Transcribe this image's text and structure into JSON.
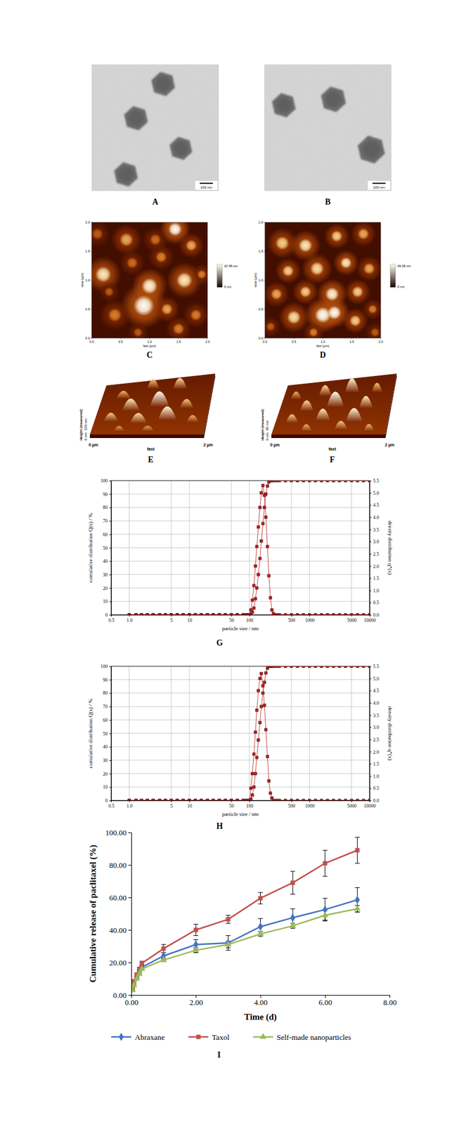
{
  "panels": [
    {
      "label": "A",
      "scale_bar": "100 nm"
    },
    {
      "label": "B",
      "scale_bar": "100 nm"
    },
    {
      "label": "C",
      "x_label": "fast (µm)",
      "y_label": "slow (µm)",
      "ticks": [
        "0.0",
        "0.5",
        "1.0",
        "1.5",
        "2.0"
      ],
      "color_max": "42.58 nm",
      "color_min": "0 nm"
    },
    {
      "label": "D",
      "x_label": "fast (µm)",
      "y_label": "slow (µm)",
      "ticks": [
        "0.0",
        "0.5",
        "1.0",
        "1.5",
        "2.0"
      ],
      "color_max": "49.08 nm",
      "color_min": "0 nm"
    },
    {
      "label": "E",
      "axis_start": "0 µm",
      "axis_label": "fast",
      "axis_end": "2 µm",
      "z_label": "Height (measured)",
      "z_max": "100 nm",
      "z_min": "0 nm"
    },
    {
      "label": "F",
      "axis_start": "0 µm",
      "axis_label": "fast",
      "axis_end": "2 µm",
      "z_label": "Height (measured)",
      "z_max": "80 nm",
      "z_min": "0 nm"
    }
  ],
  "chart_data": [
    {
      "type": "line",
      "title": "G",
      "x_label": "particle size / nm",
      "y_label": "cumulative distribution Q(x) / %",
      "y2_label": "density distribution q*(x)",
      "log": "x",
      "grid": true,
      "xlim": [
        0.5,
        10000
      ],
      "xticks": [
        0.5,
        {
          "value": 1,
          "label": "1.0"
        },
        5,
        10,
        50,
        100,
        500,
        1000,
        5000,
        10000
      ],
      "ylim": [
        0,
        100
      ],
      "yticks": [
        0,
        10,
        20,
        30,
        40,
        50,
        60,
        70,
        80,
        90,
        100
      ],
      "y2lim": [
        0,
        5.5
      ],
      "y2ticks": [
        {
          "value": 0,
          "label": "0.0"
        },
        0.5,
        {
          "value": 1,
          "label": "1.0"
        },
        1.5,
        {
          "value": 2,
          "label": "2.0"
        },
        2.5,
        {
          "value": 3,
          "label": "3.0"
        },
        3.5,
        {
          "value": 4,
          "label": "4.0"
        },
        4.5,
        {
          "value": 5,
          "label": "5.0"
        },
        5.5
      ],
      "x": [
        1,
        1.3,
        1.6,
        2,
        2.5,
        3.2,
        4,
        5,
        6.3,
        7.9,
        10,
        12.6,
        15.8,
        20,
        25,
        31.6,
        39.8,
        50,
        63,
        79,
        89,
        100,
        106,
        112,
        119,
        126,
        133,
        141,
        150,
        158,
        168,
        178,
        188,
        200,
        211,
        224,
        237,
        251,
        282,
        316,
        398,
        501,
        631,
        794,
        1000,
        1259,
        1585,
        1995,
        2512,
        3162,
        3981,
        5012,
        6310,
        7943,
        10000
      ],
      "series": [
        {
          "color": "#b22222",
          "marker": "square",
          "values": [
            0,
            0,
            0,
            0,
            0,
            0,
            0,
            0,
            0,
            0,
            0,
            0,
            0,
            0,
            0,
            0,
            0,
            0,
            0,
            0,
            0,
            0,
            0.5,
            2,
            5,
            12,
            20,
            30,
            42,
            55,
            68,
            80,
            90,
            96,
            99,
            100,
            100,
            100,
            100,
            100,
            100,
            100,
            100,
            100,
            100,
            100,
            100,
            100,
            100,
            100,
            100,
            100,
            100,
            100,
            100
          ]
        },
        {
          "color": "#b22222",
          "marker": "square",
          "axis": "y2",
          "values": [
            0,
            0,
            0,
            0,
            0,
            0,
            0,
            0,
            0,
            0,
            0,
            0,
            0,
            0,
            0,
            0,
            0,
            0,
            0,
            0,
            0,
            0,
            0.2,
            0.6,
            1.2,
            2,
            2.8,
            3.6,
            4.4,
            5,
            5.3,
            4.9,
            4,
            2.8,
            1.6,
            0.7,
            0.2,
            0.05,
            0,
            0,
            0,
            0,
            0,
            0,
            0,
            0,
            0,
            0,
            0,
            0,
            0,
            0,
            0,
            0,
            0
          ]
        }
      ]
    },
    {
      "type": "line",
      "title": "H",
      "x_label": "particle size / nm",
      "y_label": "cumulative distribution Q(x) / %",
      "y2_label": "density distribution q*(x)",
      "log": "x",
      "grid": true,
      "xlim": [
        0.5,
        10000
      ],
      "xticks": [
        0.5,
        {
          "value": 1,
          "label": "1.0"
        },
        5,
        10,
        50,
        100,
        500,
        1000,
        5000,
        10000
      ],
      "ylim": [
        0,
        100
      ],
      "yticks": [
        0,
        10,
        20,
        30,
        40,
        50,
        60,
        70,
        80,
        90,
        100
      ],
      "y2lim": [
        0,
        5.5
      ],
      "y2ticks": [
        {
          "value": 0,
          "label": "0.0"
        },
        0.5,
        {
          "value": 1,
          "label": "1.0"
        },
        1.5,
        {
          "value": 2,
          "label": "2.0"
        },
        2.5,
        {
          "value": 3,
          "label": "3.0"
        },
        3.5,
        {
          "value": 4,
          "label": "4.0"
        },
        4.5,
        {
          "value": 5,
          "label": "5.0"
        },
        5.5
      ],
      "x": [
        1,
        1.3,
        1.6,
        2,
        2.5,
        3.2,
        4,
        5,
        6.3,
        7.9,
        10,
        12.6,
        15.8,
        20,
        25,
        31.6,
        39.8,
        50,
        63,
        79,
        89,
        100,
        106,
        112,
        119,
        126,
        133,
        141,
        150,
        158,
        168,
        178,
        188,
        200,
        211,
        224,
        237,
        251,
        282,
        316,
        398,
        501,
        631,
        794,
        1000,
        1259,
        1585,
        1995,
        2512,
        3162,
        3981,
        5012,
        6310,
        7943,
        10000
      ],
      "series": [
        {
          "color": "#b22222",
          "marker": "square",
          "values": [
            0,
            0,
            0,
            0,
            0,
            0,
            0,
            0,
            0,
            0,
            0,
            0,
            0,
            0,
            0,
            0,
            0,
            0,
            0,
            0,
            0,
            0,
            1,
            4,
            10,
            20,
            32,
            45,
            58,
            70,
            80,
            88,
            95,
            98.5,
            100,
            100,
            100,
            100,
            100,
            100,
            100,
            100,
            100,
            100,
            100,
            100,
            100,
            100,
            100,
            100,
            100,
            100,
            100,
            100,
            100
          ]
        },
        {
          "color": "#b22222",
          "marker": "square",
          "axis": "y2",
          "values": [
            0,
            0,
            0,
            0,
            0,
            0,
            0,
            0,
            0,
            0,
            0,
            0,
            0,
            0,
            0,
            0,
            0,
            0,
            0,
            0,
            0,
            0,
            0.5,
            1.1,
            1.9,
            2.8,
            3.7,
            4.5,
            5,
            5.2,
            4.7,
            3.9,
            2.9,
            1.8,
            0.8,
            0.3,
            0.1,
            0,
            0,
            0,
            0,
            0,
            0,
            0,
            0,
            0,
            0,
            0,
            0,
            0,
            0,
            0,
            0,
            0,
            0
          ]
        }
      ]
    },
    {
      "type": "line",
      "title": "I",
      "x_label": "Time (d)",
      "y_label": "Cumulative release of paclitaxel (%)",
      "legend": "bottom",
      "xlim": [
        0,
        8
      ],
      "xticks": [
        {
          "value": 0,
          "label": "0.00"
        },
        {
          "value": 2,
          "label": "2.00"
        },
        {
          "value": 4,
          "label": "4.00"
        },
        {
          "value": 6,
          "label": "6.00"
        },
        {
          "value": 8,
          "label": "8.00"
        }
      ],
      "ylim": [
        0,
        100
      ],
      "yticks": [
        {
          "value": 0,
          "label": "0.00"
        },
        {
          "value": 20,
          "label": "20.00"
        },
        {
          "value": 40,
          "label": "40.00"
        },
        {
          "value": 60,
          "label": "60.00"
        },
        {
          "value": 80,
          "label": "80.00"
        },
        {
          "value": 100,
          "label": "100.00"
        }
      ],
      "x": [
        0.04,
        0.08,
        0.17,
        0.25,
        0.33,
        1,
        2,
        3,
        4,
        5,
        6,
        7
      ],
      "series": [
        {
          "name": "Abraxane",
          "color": "#4472c4",
          "marker": "diamond",
          "values": [
            4,
            7,
            11,
            14,
            17,
            24,
            31,
            32,
            42,
            47.5,
            52.5,
            58.5
          ],
          "errors": [
            0.5,
            0.8,
            0.8,
            1,
            1,
            2,
            3,
            4.5,
            5,
            5.5,
            7,
            7.5
          ]
        },
        {
          "name": "Taxol",
          "color": "#c0504d",
          "marker": "square",
          "values": [
            5,
            8.5,
            12.5,
            16,
            19.5,
            28.5,
            40,
            46.5,
            59.5,
            69,
            81,
            89
          ],
          "errors": [
            0.5,
            0.8,
            1,
            1,
            1.2,
            2.5,
            3.5,
            2.5,
            3.5,
            7,
            8,
            8
          ]
        },
        {
          "name": "Self-made nanoparticles",
          "color": "#9bbb59",
          "marker": "triangle",
          "values": [
            3,
            6,
            10,
            13,
            16,
            21.5,
            27.5,
            31,
            37.5,
            42.5,
            49,
            53
          ],
          "errors": [
            0.3,
            0.5,
            0.5,
            0.8,
            0.8,
            1,
            1.5,
            2,
            1.5,
            1.5,
            3,
            2
          ]
        }
      ]
    }
  ]
}
